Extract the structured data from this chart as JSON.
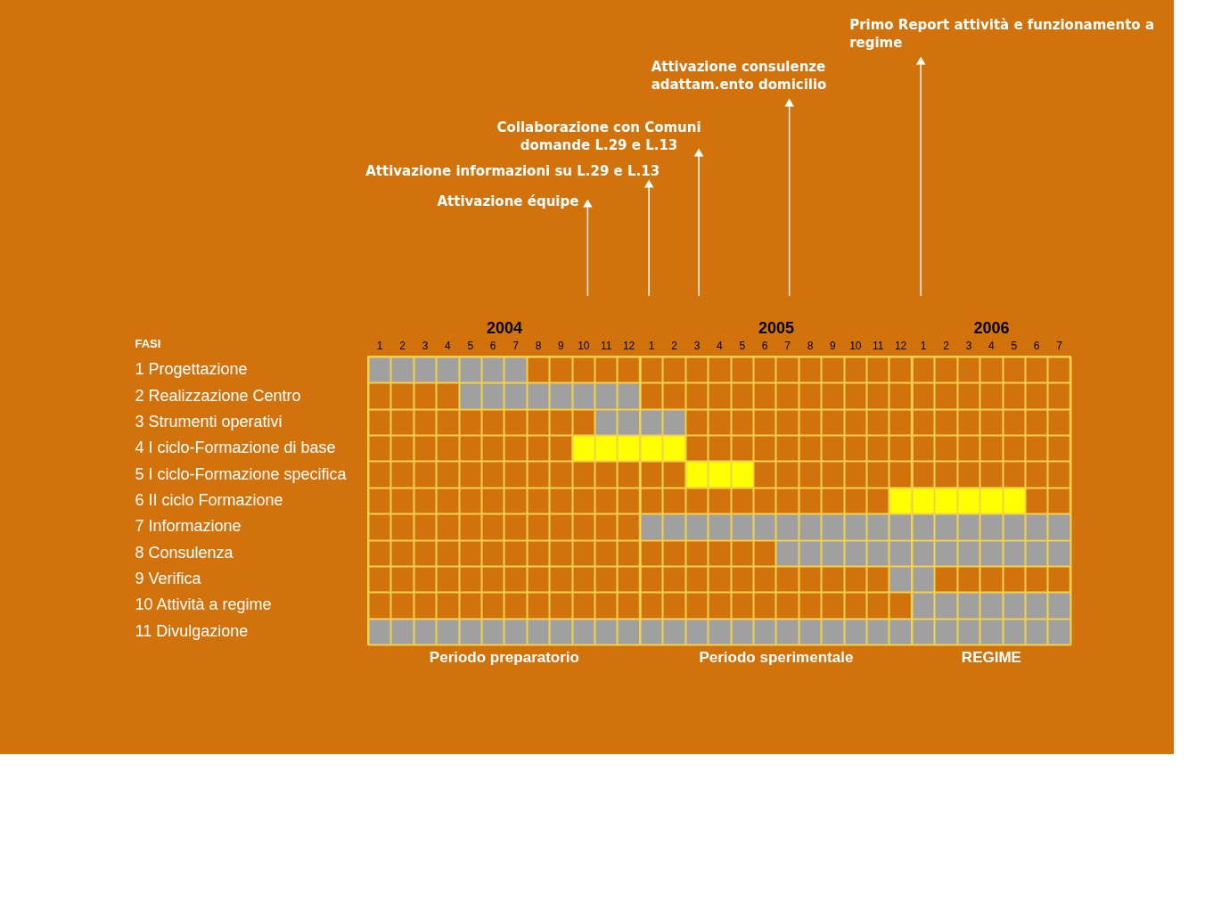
{
  "chart_data": [
    {
      "type": "bar",
      "orientation": "horizontal",
      "title": "2004",
      "xlabel": "Periodo preparatorio",
      "ylabel": "FASI",
      "categories": [
        "1 Progettazione",
        "2 Realizzazione Centro",
        "3 Strumenti operativi",
        "4 I ciclo-Formazione di base",
        "5 I ciclo-Formazione specifica",
        "6 II ciclo Formazione",
        "7 Informazione",
        "8 Consulenza",
        "9 Verifica",
        "10 Attività a regime",
        "11 Divulgazione"
      ],
      "base": [
        0.5,
        4.5,
        10.5,
        9.5,
        null,
        null,
        null,
        null,
        null,
        null,
        0.5
      ],
      "values": [
        7,
        8,
        2,
        3,
        null,
        null,
        null,
        null,
        null,
        null,
        12
      ],
      "colors": [
        "#a0a0a0",
        "#a0a0a0",
        "#a0a0a0",
        "#ffff00",
        "#ffff00",
        "#ffff00",
        "#a0a0a0",
        "#a0a0a0",
        "#a0a0a0",
        "#a0a0a0",
        "#a0a0a0"
      ],
      "xlim": [
        0.5,
        12.5
      ],
      "xticks": [
        1,
        2,
        3,
        4,
        5,
        6,
        7,
        8,
        9,
        10,
        11,
        12
      ],
      "grid": true,
      "ref_lines": [
        {
          "axis": "x",
          "value": 10.2,
          "label": "Attivazione équipe"
        }
      ]
    },
    {
      "type": "bar",
      "orientation": "horizontal",
      "title": "2005",
      "xlabel": "Periodo sperimentale",
      "tick_labels": "x",
      "base": [
        null,
        null,
        0.5,
        0.5,
        2.5,
        11.5,
        0.5,
        6.5,
        11.5,
        null,
        0.5
      ],
      "values": [
        null,
        null,
        2,
        2,
        3,
        1,
        12,
        6,
        1,
        null,
        12
      ],
      "colors": [
        "#a0a0a0",
        "#a0a0a0",
        "#a0a0a0",
        "#ffff00",
        "#ffff00",
        "#ffff00",
        "#a0a0a0",
        "#a0a0a0",
        "#a0a0a0",
        "#a0a0a0",
        "#a0a0a0"
      ],
      "xlim": [
        0.5,
        12.5
      ],
      "xticks": [
        1,
        2,
        3,
        4,
        5,
        6,
        7,
        8,
        9,
        10,
        11,
        12
      ],
      "grid": true,
      "ref_lines": [
        {
          "axis": "x",
          "value": 0.9,
          "label": "Attivazione informazioni su L.29 e L.13"
        },
        {
          "axis": "x",
          "value": 3.1,
          "label": "Collaborazione con Comuni\ndomande L.29 e L.13"
        },
        {
          "axis": "x",
          "value": 7.1,
          "label": "Attivazione consulenze\nadattam.ento domicilio"
        }
      ]
    },
    {
      "type": "bar",
      "orientation": "horizontal",
      "title": "2006",
      "xlabel": "REGIME",
      "tick_labels": "x",
      "base": [
        null,
        null,
        null,
        null,
        null,
        0.5,
        0.5,
        0.5,
        0.5,
        0.5,
        0.5
      ],
      "values": [
        null,
        null,
        null,
        null,
        null,
        5,
        7,
        7,
        1,
        7,
        7
      ],
      "colors": [
        "#a0a0a0",
        "#a0a0a0",
        "#a0a0a0",
        "#ffff00",
        "#ffff00",
        "#ffff00",
        "#a0a0a0",
        "#a0a0a0",
        "#a0a0a0",
        "#a0a0a0",
        "#a0a0a0"
      ],
      "xlim": [
        0.5,
        7.5
      ],
      "xticks": [
        1,
        2,
        3,
        4,
        5,
        6,
        7
      ],
      "grid": true,
      "ref_lines": [
        {
          "axis": "x",
          "value": 0.9,
          "label": "Primo Report attività e funzionamento a\nregime"
        }
      ]
    }
  ]
}
